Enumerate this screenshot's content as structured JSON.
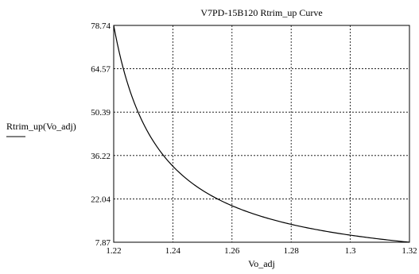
{
  "chart_data": {
    "type": "line",
    "title": "V7PD-15B120 Rtrim_up Curve",
    "xlabel": "Vo_adj",
    "ylabel": "Rtrim_up(Vo_adj)",
    "xlim": [
      1.22,
      1.32
    ],
    "ylim": [
      7.87,
      78.74
    ],
    "x_ticks": [
      "1.22",
      "1.24",
      "1.26",
      "1.28",
      "1.3",
      "1.32"
    ],
    "y_ticks": [
      "7.87",
      "22.04",
      "36.22",
      "50.39",
      "64.57",
      "78.74"
    ],
    "grid": true,
    "legend": "left",
    "series": [
      {
        "name": "Rtrim_up(Vo_adj)",
        "x": [
          1.22,
          1.225,
          1.23,
          1.235,
          1.24,
          1.245,
          1.25,
          1.26,
          1.27,
          1.28,
          1.29,
          1.3,
          1.31,
          1.32
        ],
        "y": [
          78.74,
          55.5,
          43.0,
          34.6,
          29.0,
          24.9,
          21.7,
          17.5,
          14.6,
          12.6,
          11.0,
          9.8,
          8.8,
          7.87
        ]
      }
    ]
  }
}
